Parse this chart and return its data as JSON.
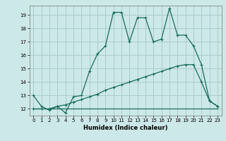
{
  "title": "",
  "xlabel": "Humidex (Indice chaleur)",
  "bg_color": "#cce8e8",
  "grid_color": "#aacccc",
  "line_color": "#1a6b5a",
  "xlim": [
    -0.5,
    23.5
  ],
  "ylim": [
    11.5,
    19.7
  ],
  "xticks": [
    0,
    1,
    2,
    3,
    4,
    5,
    6,
    7,
    8,
    9,
    10,
    11,
    12,
    13,
    14,
    15,
    16,
    17,
    18,
    19,
    20,
    21,
    22,
    23
  ],
  "yticks": [
    12,
    13,
    14,
    15,
    16,
    17,
    18,
    19
  ],
  "line1_x": [
    0,
    1,
    2,
    3,
    4,
    5,
    6,
    7,
    8,
    9,
    10,
    11,
    12,
    13,
    14,
    15,
    16,
    17,
    18,
    19,
    20,
    21,
    22,
    23
  ],
  "line1_y": [
    13.0,
    12.2,
    11.9,
    12.2,
    11.7,
    12.9,
    13.0,
    14.8,
    16.1,
    16.7,
    19.2,
    19.2,
    17.0,
    18.8,
    18.8,
    17.0,
    17.2,
    19.5,
    17.5,
    17.5,
    16.7,
    15.3,
    12.6,
    12.2
  ],
  "line2_x": [
    0,
    1,
    2,
    3,
    4,
    5,
    6,
    7,
    8,
    9,
    10,
    11,
    12,
    13,
    14,
    15,
    16,
    17,
    18,
    19,
    20,
    21,
    22,
    23
  ],
  "line2_y": [
    12.0,
    12.0,
    12.0,
    12.2,
    12.3,
    12.5,
    12.7,
    12.9,
    13.1,
    13.4,
    13.6,
    13.8,
    14.0,
    14.2,
    14.4,
    14.6,
    14.8,
    15.0,
    15.2,
    15.3,
    15.3,
    14.0,
    12.6,
    12.2
  ],
  "line3_x": [
    0,
    23
  ],
  "line3_y": [
    12.0,
    12.0
  ]
}
